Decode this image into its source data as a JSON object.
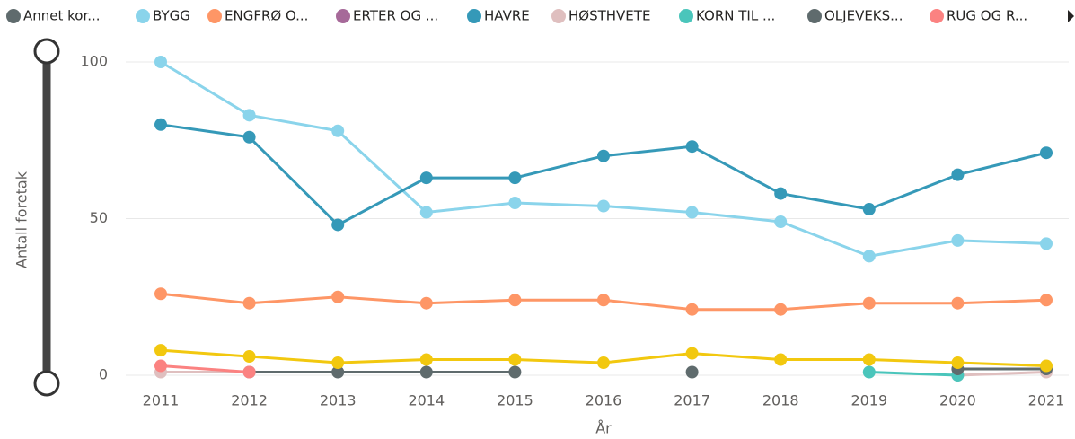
{
  "chart_data": {
    "type": "line",
    "x_label": "År",
    "y_label": "Antall foretak",
    "categories": [
      "2011",
      "2012",
      "2013",
      "2014",
      "2015",
      "2016",
      "2017",
      "2018",
      "2019",
      "2020",
      "2021"
    ],
    "ylim": [
      0,
      100
    ],
    "yticks": [
      0,
      50,
      100
    ],
    "grid": true,
    "series": [
      {
        "name": "Annet kor...",
        "color": "#5f6b6d",
        "values": [
          null,
          1,
          1,
          1,
          1,
          null,
          1,
          null,
          null,
          null,
          null
        ]
      },
      {
        "name": "BYGG",
        "color": "#8ad4eb",
        "values": [
          100,
          83,
          78,
          52,
          55,
          54,
          52,
          49,
          38,
          43,
          42
        ]
      },
      {
        "name": "ENGFRØ O...",
        "color": "#fe9666",
        "values": [
          26,
          23,
          25,
          23,
          24,
          24,
          21,
          21,
          23,
          23,
          24
        ]
      },
      {
        "name": "ERTER OG ...",
        "color": "#a66999",
        "values": [
          null,
          null,
          null,
          null,
          null,
          null,
          null,
          null,
          null,
          null,
          null
        ]
      },
      {
        "name": "HAVRE",
        "color": "#3599b8",
        "values": [
          80,
          76,
          48,
          63,
          63,
          70,
          73,
          58,
          53,
          64,
          71
        ]
      },
      {
        "name": "HØSTHVETE",
        "color": "#dfbfbf",
        "values": [
          1,
          1,
          null,
          null,
          null,
          null,
          null,
          null,
          null,
          0,
          1
        ]
      },
      {
        "name": "KORN TIL ...",
        "color": "#4ac5bb",
        "values": [
          null,
          null,
          null,
          null,
          null,
          null,
          null,
          null,
          1,
          0,
          null
        ]
      },
      {
        "name": "OLJEVEKS...",
        "color": "#5f6b6d",
        "values": [
          null,
          null,
          null,
          null,
          null,
          null,
          null,
          null,
          null,
          2,
          2
        ]
      },
      {
        "name": "RUG OG R...",
        "color": "#fb8281",
        "values": [
          3,
          1,
          null,
          null,
          null,
          null,
          null,
          null,
          null,
          null,
          null
        ]
      },
      {
        "color": "#f2c80f",
        "values": [
          8,
          6,
          4,
          5,
          5,
          4,
          7,
          5,
          5,
          4,
          3
        ]
      }
    ]
  }
}
